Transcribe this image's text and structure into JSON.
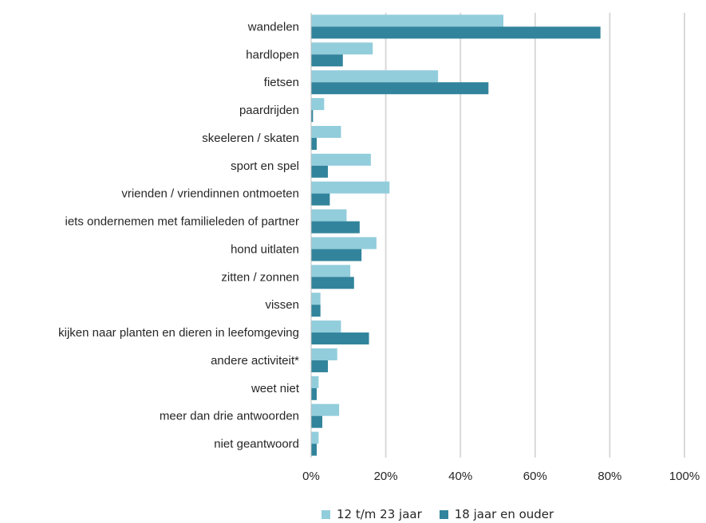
{
  "chart_data": {
    "type": "bar",
    "orientation": "horizontal",
    "categories": [
      "wandelen",
      "hardlopen",
      "fietsen",
      "paardrijden",
      "skeeleren / skaten",
      "sport en spel",
      "vrienden / vriendinnen ontmoeten",
      "iets ondernemen met familieleden of partner",
      "hond uitlaten",
      "zitten / zonnen",
      "vissen",
      "kijken naar planten en dieren in leefomgeving",
      "andere activiteit*",
      "weet niet",
      "meer dan drie antwoorden",
      "niet geantwoord"
    ],
    "series": [
      {
        "name": "12 t/m 23 jaar",
        "color": "#92cddc",
        "values": [
          51.5,
          16.5,
          34,
          3.5,
          8,
          16,
          21,
          9.5,
          17.5,
          10.5,
          2.5,
          8,
          7,
          2,
          7.5,
          2
        ]
      },
      {
        "name": "18 jaar en ouder",
        "color": "#31849b",
        "values": [
          77.5,
          8.5,
          47.5,
          0.5,
          1.5,
          4.5,
          5,
          13,
          13.5,
          11.5,
          2.5,
          15.5,
          4.5,
          1.5,
          3,
          1.5
        ]
      }
    ],
    "xlim": [
      0,
      100
    ],
    "xticks": [
      "0%",
      "20%",
      "40%",
      "60%",
      "80%",
      "100%"
    ],
    "grid": true,
    "legend_position": "bottom",
    "title": "",
    "xlabel": "",
    "ylabel": ""
  }
}
